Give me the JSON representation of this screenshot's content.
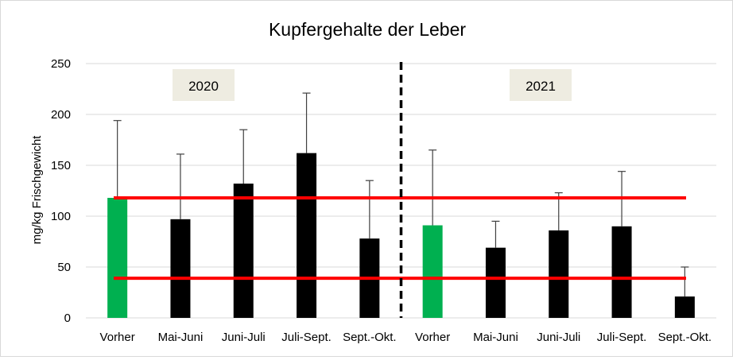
{
  "chart_data": {
    "type": "bar",
    "title": "Kupfergehalte der Leber",
    "ylabel": "mg/kg Frischgewicht",
    "xlabel": "",
    "ylim": [
      0,
      250
    ],
    "yticks": [
      0,
      50,
      100,
      150,
      200,
      250
    ],
    "grid": true,
    "legend": "none",
    "categories": [
      "Vorher",
      "Mai-Juni",
      "Juni-Juli",
      "Juli-Sept.",
      "Sept.-Okt.",
      "Vorher",
      "Mai-Juni",
      "Juni-Juli",
      "Juli-Sept.",
      "Sept.-Okt."
    ],
    "values": [
      118,
      97,
      132,
      162,
      78,
      91,
      69,
      86,
      90,
      21
    ],
    "error_upper": [
      194,
      161,
      185,
      221,
      135,
      165,
      95,
      123,
      144,
      50
    ],
    "bar_colors": [
      "#00b050",
      "#000000",
      "#000000",
      "#000000",
      "#000000",
      "#00b050",
      "#000000",
      "#000000",
      "#000000",
      "#000000"
    ],
    "groups": [
      {
        "label": "2020",
        "first": 0,
        "last": 4
      },
      {
        "label": "2021",
        "first": 5,
        "last": 9
      }
    ],
    "reference_lines": [
      {
        "value": 118,
        "color": "#ff0000"
      },
      {
        "value": 39,
        "color": "#ff0000"
      }
    ],
    "separator_after_index": 4
  },
  "colors": {
    "grid": "#d9d9d9",
    "year_box": "#eeece1",
    "error_bar": "#404040"
  }
}
